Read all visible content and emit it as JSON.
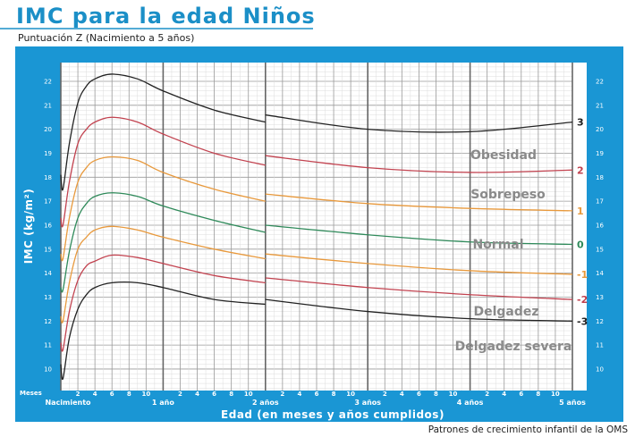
{
  "header": {
    "title": "IMC para la edad Niños",
    "subtitle": "Puntuación Z (Nacimiento a 5 años)"
  },
  "footer": "Patrones de crecimiento infantil de la OMS",
  "colors": {
    "frame": "#1a96d4",
    "title": "#1b8fc7",
    "z3": "#222222",
    "z2": "#c2424f",
    "z1": "#e8993c",
    "z0": "#2f8a5a"
  },
  "chart_data": {
    "type": "line",
    "title": "IMC para la edad Niños",
    "xlabel": "Edad (en meses y años cumplidos)",
    "ylabel": "IMC (kg/m²)",
    "xlim": [
      0,
      60
    ],
    "ylim": [
      9.2,
      22.8
    ],
    "grid": true,
    "x_unit_label": "Meses",
    "y_ticks": [
      "10",
      "11",
      "12",
      "13",
      "14",
      "15",
      "16",
      "17",
      "18",
      "19",
      "20",
      "21",
      "22"
    ],
    "month_ticks": [
      "2",
      "4",
      "6",
      "8",
      "10"
    ],
    "year_labels": [
      "Nacimiento",
      "1 año",
      "2 años",
      "3 años",
      "4 años",
      "5 años"
    ],
    "x_infant": [
      0,
      0.25,
      1,
      2,
      3,
      4,
      6,
      9,
      12,
      18,
      24
    ],
    "x_child": [
      24,
      36,
      48,
      60
    ],
    "series": [
      {
        "name": "3",
        "color": "#222222",
        "infant": [
          18.1,
          17.5,
          19.4,
          21.1,
          21.8,
          22.1,
          22.3,
          22.1,
          21.6,
          20.8,
          20.3
        ],
        "child": [
          20.6,
          20.0,
          19.9,
          20.3
        ]
      },
      {
        "name": "2",
        "color": "#c2424f",
        "infant": [
          16.3,
          16.0,
          17.8,
          19.4,
          20.0,
          20.3,
          20.5,
          20.3,
          19.8,
          19.0,
          18.5
        ],
        "child": [
          18.9,
          18.4,
          18.2,
          18.3
        ]
      },
      {
        "name": "1",
        "color": "#e8993c",
        "infant": [
          14.8,
          14.6,
          16.3,
          17.8,
          18.4,
          18.7,
          18.85,
          18.7,
          18.2,
          17.5,
          17.0
        ],
        "child": [
          17.3,
          16.9,
          16.7,
          16.6
        ]
      },
      {
        "name": "0",
        "color": "#2f8a5a",
        "infant": [
          13.4,
          13.3,
          14.9,
          16.3,
          16.9,
          17.2,
          17.35,
          17.2,
          16.8,
          16.2,
          15.7
        ],
        "child": [
          16.0,
          15.6,
          15.3,
          15.2
        ]
      },
      {
        "name": "-1",
        "color": "#e8993c",
        "infant": [
          12.2,
          12.0,
          13.6,
          15.0,
          15.5,
          15.8,
          15.95,
          15.8,
          15.5,
          15.0,
          14.6
        ],
        "child": [
          14.8,
          14.4,
          14.1,
          13.95
        ]
      },
      {
        "name": "-2",
        "color": "#c2424f",
        "infant": [
          11.1,
          10.8,
          12.4,
          13.7,
          14.3,
          14.5,
          14.75,
          14.65,
          14.4,
          13.9,
          13.6
        ],
        "child": [
          13.8,
          13.4,
          13.1,
          12.9
        ]
      },
      {
        "name": "-3",
        "color": "#222222",
        "infant": [
          10.2,
          9.6,
          11.3,
          12.5,
          13.1,
          13.4,
          13.6,
          13.6,
          13.4,
          12.9,
          12.7
        ],
        "child": [
          12.9,
          12.4,
          12.1,
          12.0
        ]
      }
    ],
    "categories": [
      "Obesidad",
      "Sobrepeso",
      "Normal",
      "Delgadez",
      "Delgadez severa"
    ]
  }
}
